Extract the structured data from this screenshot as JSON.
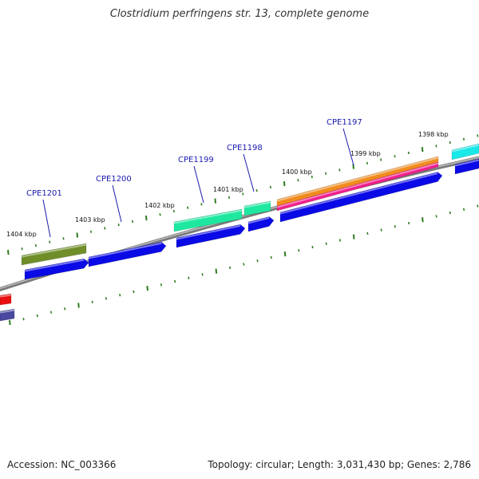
{
  "title": "Clostridium perfringens str. 13, complete genome",
  "footer": {
    "accession": "Accession: NC_003366",
    "summary": "Topology: circular; Length: 3,031,430 bp; Genes: 2,786"
  },
  "gene_labels": [
    "CPE1201",
    "CPE1200",
    "CPE1199",
    "CPE1198",
    "CPE1197"
  ],
  "kbp_labels": [
    "1404 kbp",
    "1403 kbp",
    "1402 kbp",
    "1401 kbp",
    "1400 kbp",
    "1399 kbp",
    "1398 kbp"
  ],
  "colors": {
    "backbone": "#8a8a8a",
    "tick": "#2e7d1e",
    "cds": "#0a0ae6",
    "olive": "#6f8e2a",
    "spring_green": "#1ee8a0",
    "orange": "#f08c1e",
    "magenta": "#f0208c",
    "cyan": "#18e8e8",
    "red": "#e81010",
    "slate": "#4848a0",
    "label": "#1a1ab0"
  }
}
